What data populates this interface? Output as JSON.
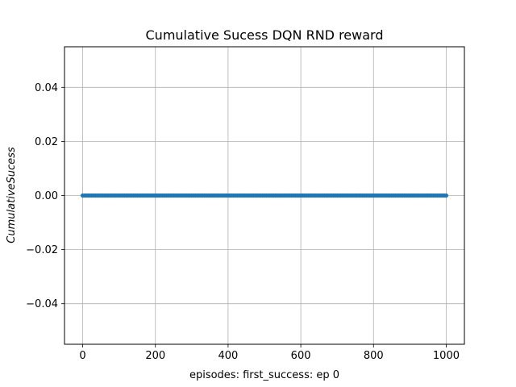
{
  "chart_data": {
    "type": "scatter",
    "title": "Cumulative Sucess DQN RND reward",
    "xlabel": "episodes: first_success: ep 0",
    "ylabel": "CumulativeSucess",
    "xlim": [
      -50,
      1050
    ],
    "ylim": [
      -0.055,
      0.055
    ],
    "xticks": [
      0,
      200,
      400,
      600,
      800,
      1000
    ],
    "yticks": [
      -0.04,
      -0.02,
      0.0,
      0.02,
      0.04
    ],
    "xtick_labels": [
      "0",
      "200",
      "400",
      "600",
      "800",
      "1000"
    ],
    "ytick_labels": [
      "−0.04",
      "−0.02",
      "0.00",
      "0.02",
      "0.04"
    ],
    "grid": true,
    "series": [
      {
        "color": "#1f77b4",
        "x_start": 0,
        "x_end": 1000,
        "x_step": 5,
        "y_value": 0
      }
    ]
  },
  "colors": {
    "marker": "#1f77b4",
    "grid": "#b0b0b0",
    "axis": "#000000"
  }
}
